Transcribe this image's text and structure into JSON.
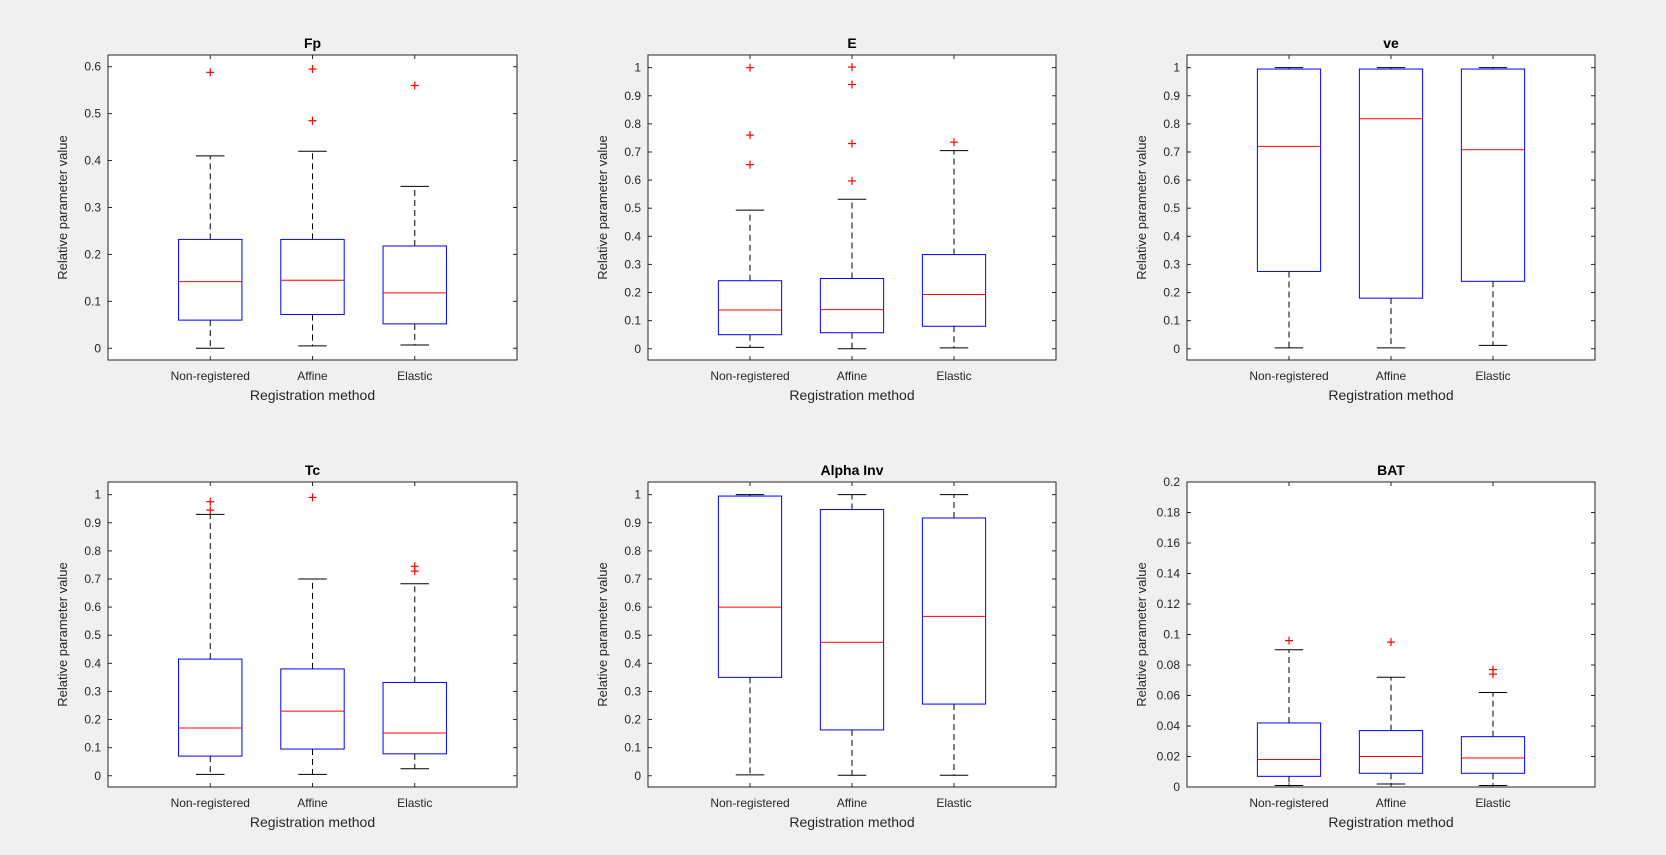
{
  "colors": {
    "background": "#f0f0f0",
    "axes_bg": "#ffffff",
    "box": "#0000ff",
    "median": "#ff0000",
    "outlier": "#ff0000",
    "whisker": "#000000"
  },
  "chart_data": [
    {
      "type": "boxplot",
      "title": "Fp",
      "xlabel": "Registration method",
      "ylabel": "Relative parameter value",
      "categories": [
        "Non-registered",
        "Affine",
        "Elastic"
      ],
      "ylim": [
        -0.025,
        0.625
      ],
      "yticks": [
        0,
        0.1,
        0.2,
        0.3,
        0.4,
        0.5,
        0.6
      ],
      "ytick_labels": [
        "0",
        "0.1",
        "0.2",
        "0.3",
        "0.4",
        "0.5",
        "0.6"
      ],
      "boxes": [
        {
          "whisker_low": 0.0,
          "q1": 0.06,
          "median": 0.142,
          "q3": 0.232,
          "whisker_high": 0.41,
          "outliers": [
            0.588
          ]
        },
        {
          "whisker_low": 0.005,
          "q1": 0.072,
          "median": 0.145,
          "q3": 0.232,
          "whisker_high": 0.42,
          "outliers": [
            0.595,
            0.485
          ]
        },
        {
          "whisker_low": 0.007,
          "q1": 0.052,
          "median": 0.118,
          "q3": 0.218,
          "whisker_high": 0.345,
          "outliers": [
            0.56
          ]
        }
      ]
    },
    {
      "type": "boxplot",
      "title": "E",
      "xlabel": "Registration method",
      "ylabel": "Relative parameter value",
      "categories": [
        "Non-registered",
        "Affine",
        "Elastic"
      ],
      "ylim": [
        -0.04,
        1.045
      ],
      "yticks": [
        0,
        0.1,
        0.2,
        0.3,
        0.4,
        0.5,
        0.6,
        0.7,
        0.8,
        0.9,
        1
      ],
      "ytick_labels": [
        "0",
        "0.1",
        "0.2",
        "0.3",
        "0.4",
        "0.5",
        "0.6",
        "0.7",
        "0.8",
        "0.9",
        "1"
      ],
      "boxes": [
        {
          "whisker_low": 0.005,
          "q1": 0.05,
          "median": 0.138,
          "q3": 0.242,
          "whisker_high": 0.493,
          "outliers": [
            1.0,
            0.76,
            0.655
          ]
        },
        {
          "whisker_low": 0.0,
          "q1": 0.057,
          "median": 0.139,
          "q3": 0.25,
          "whisker_high": 0.532,
          "outliers": [
            1.002,
            0.94,
            0.73,
            0.597
          ]
        },
        {
          "whisker_low": 0.003,
          "q1": 0.08,
          "median": 0.193,
          "q3": 0.335,
          "whisker_high": 0.705,
          "outliers": [
            0.735
          ]
        }
      ]
    },
    {
      "type": "boxplot",
      "title": "ve",
      "xlabel": "Registration method",
      "ylabel": "Relative parameter value",
      "categories": [
        "Non-registered",
        "Affine",
        "Elastic"
      ],
      "ylim": [
        -0.04,
        1.045
      ],
      "yticks": [
        0,
        0.1,
        0.2,
        0.3,
        0.4,
        0.5,
        0.6,
        0.7,
        0.8,
        0.9,
        1
      ],
      "ytick_labels": [
        "0",
        "0.1",
        "0.2",
        "0.3",
        "0.4",
        "0.5",
        "0.6",
        "0.7",
        "0.8",
        "0.9",
        "1"
      ],
      "boxes": [
        {
          "whisker_low": 0.003,
          "q1": 0.275,
          "median": 0.72,
          "q3": 0.995,
          "whisker_high": 1.0,
          "outliers": []
        },
        {
          "whisker_low": 0.003,
          "q1": 0.18,
          "median": 0.818,
          "q3": 0.995,
          "whisker_high": 1.0,
          "outliers": []
        },
        {
          "whisker_low": 0.012,
          "q1": 0.24,
          "median": 0.708,
          "q3": 0.995,
          "whisker_high": 1.0,
          "outliers": []
        }
      ]
    },
    {
      "type": "boxplot",
      "title": "Tc",
      "xlabel": "Registration method",
      "ylabel": "Relative parameter value",
      "categories": [
        "Non-registered",
        "Affine",
        "Elastic"
      ],
      "ylim": [
        -0.04,
        1.045
      ],
      "yticks": [
        0,
        0.1,
        0.2,
        0.3,
        0.4,
        0.5,
        0.6,
        0.7,
        0.8,
        0.9,
        1
      ],
      "ytick_labels": [
        "0",
        "0.1",
        "0.2",
        "0.3",
        "0.4",
        "0.5",
        "0.6",
        "0.7",
        "0.8",
        "0.9",
        "1"
      ],
      "boxes": [
        {
          "whisker_low": 0.005,
          "q1": 0.07,
          "median": 0.17,
          "q3": 0.415,
          "whisker_high": 0.93,
          "outliers": [
            0.975,
            0.945
          ]
        },
        {
          "whisker_low": 0.005,
          "q1": 0.095,
          "median": 0.23,
          "q3": 0.38,
          "whisker_high": 0.7,
          "outliers": [
            0.99
          ]
        },
        {
          "whisker_low": 0.025,
          "q1": 0.078,
          "median": 0.152,
          "q3": 0.332,
          "whisker_high": 0.683,
          "outliers": [
            0.745,
            0.728
          ]
        }
      ]
    },
    {
      "type": "boxplot",
      "title": "Alpha Inv",
      "xlabel": "Registration method",
      "ylabel": "Relative parameter value",
      "categories": [
        "Non-registered",
        "Affine",
        "Elastic"
      ],
      "ylim": [
        -0.04,
        1.045
      ],
      "yticks": [
        0,
        0.1,
        0.2,
        0.3,
        0.4,
        0.5,
        0.6,
        0.7,
        0.8,
        0.9,
        1
      ],
      "ytick_labels": [
        "0",
        "0.1",
        "0.2",
        "0.3",
        "0.4",
        "0.5",
        "0.6",
        "0.7",
        "0.8",
        "0.9",
        "1"
      ],
      "boxes": [
        {
          "whisker_low": 0.003,
          "q1": 0.35,
          "median": 0.6,
          "q3": 0.995,
          "whisker_high": 1.0,
          "outliers": []
        },
        {
          "whisker_low": 0.002,
          "q1": 0.163,
          "median": 0.475,
          "q3": 0.947,
          "whisker_high": 1.0,
          "outliers": []
        },
        {
          "whisker_low": 0.002,
          "q1": 0.255,
          "median": 0.567,
          "q3": 0.917,
          "whisker_high": 1.0,
          "outliers": []
        }
      ]
    },
    {
      "type": "boxplot",
      "title": "BAT",
      "xlabel": "Registration method",
      "ylabel": "Relative parameter value",
      "categories": [
        "Non-registered",
        "Affine",
        "Elastic"
      ],
      "ylim": [
        0,
        0.2
      ],
      "yticks": [
        0,
        0.02,
        0.04,
        0.06,
        0.08,
        0.1,
        0.12,
        0.14,
        0.16,
        0.18,
        0.2
      ],
      "ytick_labels": [
        "0",
        "0.02",
        "0.04",
        "0.06",
        "0.08",
        "0.1",
        "0.12",
        "0.14",
        "0.16",
        "0.18",
        "0.2"
      ],
      "boxes": [
        {
          "whisker_low": 0.001,
          "q1": 0.007,
          "median": 0.018,
          "q3": 0.042,
          "whisker_high": 0.09,
          "outliers": [
            0.096
          ]
        },
        {
          "whisker_low": 0.002,
          "q1": 0.009,
          "median": 0.02,
          "q3": 0.037,
          "whisker_high": 0.072,
          "outliers": [
            0.095
          ]
        },
        {
          "whisker_low": 0.001,
          "q1": 0.009,
          "median": 0.019,
          "q3": 0.033,
          "whisker_high": 0.062,
          "outliers": [
            0.077,
            0.074
          ]
        }
      ]
    }
  ]
}
